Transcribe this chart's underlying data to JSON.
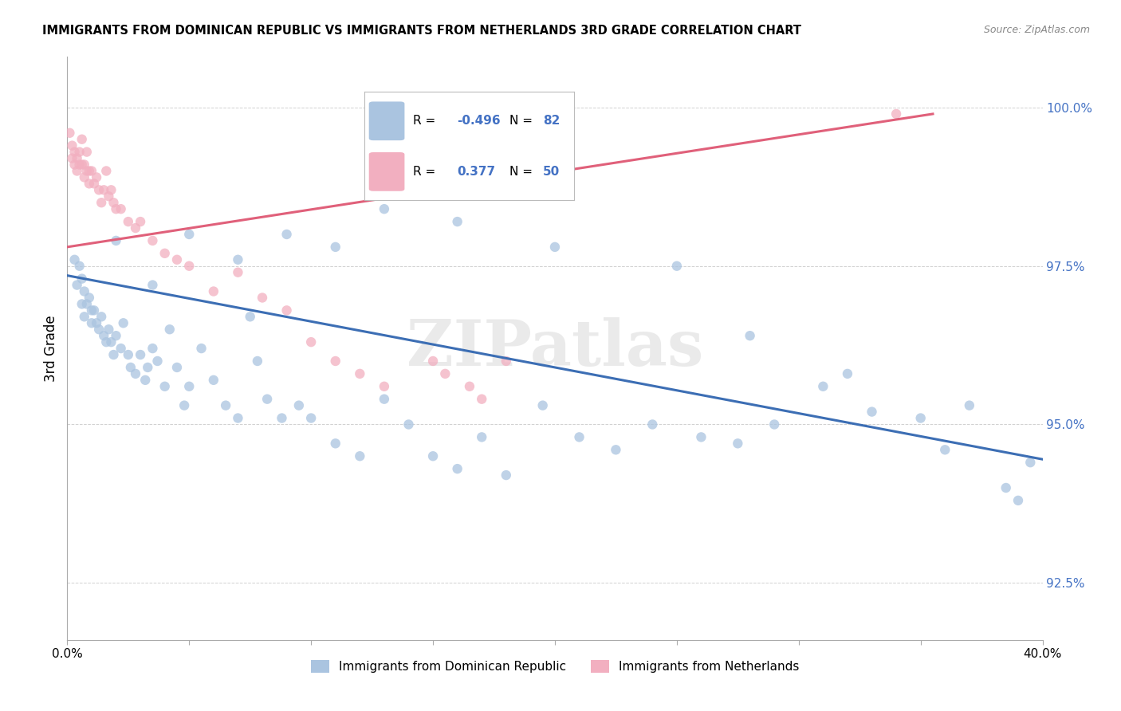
{
  "title": "IMMIGRANTS FROM DOMINICAN REPUBLIC VS IMMIGRANTS FROM NETHERLANDS 3RD GRADE CORRELATION CHART",
  "source": "Source: ZipAtlas.com",
  "ylabel": "3rd Grade",
  "ytick_labels": [
    "92.5%",
    "95.0%",
    "97.5%",
    "100.0%"
  ],
  "ytick_values": [
    0.925,
    0.95,
    0.975,
    1.0
  ],
  "xlim": [
    0.0,
    0.4
  ],
  "ylim": [
    0.916,
    1.008
  ],
  "legend_blue_r": "-0.496",
  "legend_blue_n": "82",
  "legend_pink_r": "0.377",
  "legend_pink_n": "50",
  "blue_color": "#aac4e0",
  "pink_color": "#f2afc0",
  "blue_line_color": "#3c6eb4",
  "pink_line_color": "#e0607a",
  "watermark": "ZIPatlas",
  "blue_scatter_x": [
    0.003,
    0.004,
    0.005,
    0.006,
    0.006,
    0.007,
    0.007,
    0.008,
    0.009,
    0.01,
    0.01,
    0.011,
    0.012,
    0.013,
    0.014,
    0.015,
    0.016,
    0.017,
    0.018,
    0.019,
    0.02,
    0.022,
    0.023,
    0.025,
    0.026,
    0.028,
    0.03,
    0.032,
    0.033,
    0.035,
    0.037,
    0.04,
    0.042,
    0.045,
    0.048,
    0.05,
    0.055,
    0.06,
    0.065,
    0.07,
    0.075,
    0.078,
    0.082,
    0.088,
    0.095,
    0.1,
    0.11,
    0.12,
    0.13,
    0.14,
    0.15,
    0.16,
    0.17,
    0.18,
    0.195,
    0.21,
    0.225,
    0.24,
    0.26,
    0.275,
    0.29,
    0.31,
    0.33,
    0.35,
    0.37,
    0.385,
    0.39,
    0.02,
    0.035,
    0.05,
    0.07,
    0.09,
    0.11,
    0.13,
    0.16,
    0.2,
    0.25,
    0.28,
    0.32,
    0.36,
    0.395
  ],
  "blue_scatter_y": [
    0.976,
    0.972,
    0.975,
    0.973,
    0.969,
    0.971,
    0.967,
    0.969,
    0.97,
    0.968,
    0.966,
    0.968,
    0.966,
    0.965,
    0.967,
    0.964,
    0.963,
    0.965,
    0.963,
    0.961,
    0.964,
    0.962,
    0.966,
    0.961,
    0.959,
    0.958,
    0.961,
    0.957,
    0.959,
    0.962,
    0.96,
    0.956,
    0.965,
    0.959,
    0.953,
    0.956,
    0.962,
    0.957,
    0.953,
    0.951,
    0.967,
    0.96,
    0.954,
    0.951,
    0.953,
    0.951,
    0.947,
    0.945,
    0.954,
    0.95,
    0.945,
    0.943,
    0.948,
    0.942,
    0.953,
    0.948,
    0.946,
    0.95,
    0.948,
    0.947,
    0.95,
    0.956,
    0.952,
    0.951,
    0.953,
    0.94,
    0.938,
    0.979,
    0.972,
    0.98,
    0.976,
    0.98,
    0.978,
    0.984,
    0.982,
    0.978,
    0.975,
    0.964,
    0.958,
    0.946,
    0.944
  ],
  "pink_scatter_x": [
    0.001,
    0.002,
    0.002,
    0.003,
    0.003,
    0.004,
    0.004,
    0.005,
    0.005,
    0.006,
    0.006,
    0.007,
    0.007,
    0.008,
    0.008,
    0.009,
    0.009,
    0.01,
    0.011,
    0.012,
    0.013,
    0.014,
    0.015,
    0.016,
    0.017,
    0.018,
    0.019,
    0.02,
    0.022,
    0.025,
    0.028,
    0.03,
    0.035,
    0.04,
    0.045,
    0.05,
    0.06,
    0.07,
    0.08,
    0.09,
    0.1,
    0.11,
    0.12,
    0.13,
    0.15,
    0.155,
    0.165,
    0.17,
    0.18,
    0.34
  ],
  "pink_scatter_y": [
    0.996,
    0.994,
    0.992,
    0.993,
    0.991,
    0.992,
    0.99,
    0.993,
    0.991,
    0.995,
    0.991,
    0.989,
    0.991,
    0.99,
    0.993,
    0.988,
    0.99,
    0.99,
    0.988,
    0.989,
    0.987,
    0.985,
    0.987,
    0.99,
    0.986,
    0.987,
    0.985,
    0.984,
    0.984,
    0.982,
    0.981,
    0.982,
    0.979,
    0.977,
    0.976,
    0.975,
    0.971,
    0.974,
    0.97,
    0.968,
    0.963,
    0.96,
    0.958,
    0.956,
    0.96,
    0.958,
    0.956,
    0.954,
    0.96,
    0.999
  ],
  "blue_trendline_x": [
    0.0,
    0.4
  ],
  "blue_trendline_y": [
    0.9735,
    0.9445
  ],
  "pink_trendline_x": [
    0.0,
    0.355
  ],
  "pink_trendline_y": [
    0.978,
    0.999
  ]
}
